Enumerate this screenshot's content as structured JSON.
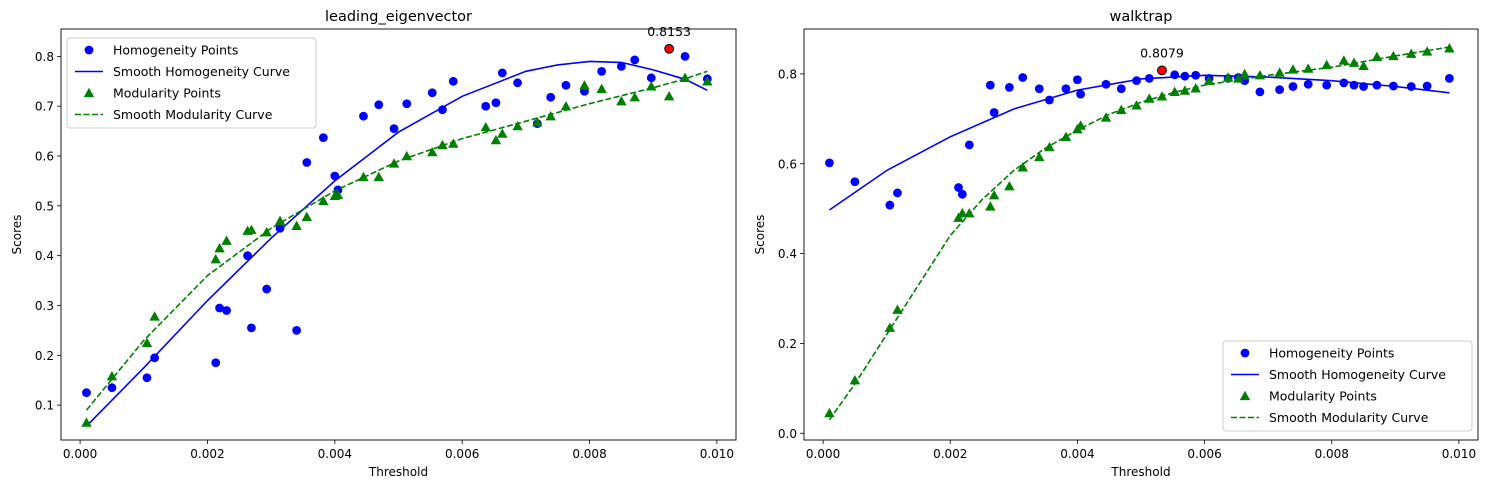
{
  "colors": {
    "homogeneity": "#0000ff",
    "modularity": "#008000",
    "highlight": "#ff0000"
  },
  "chart_data": [
    {
      "type": "scatter",
      "title": "leading_eigenvector",
      "xlabel": "Threshold",
      "ylabel": "Scores",
      "xlim": [
        -0.0003,
        0.0103
      ],
      "ylim": [
        0.03,
        0.855
      ],
      "xticks": [
        0.0,
        0.002,
        0.004,
        0.006,
        0.008,
        0.01
      ],
      "xtick_labels": [
        "0.000",
        "0.002",
        "0.004",
        "0.006",
        "0.008",
        "0.010"
      ],
      "yticks": [
        0.1,
        0.2,
        0.3,
        0.4,
        0.5,
        0.6,
        0.7,
        0.8
      ],
      "ytick_labels": [
        "0.1",
        "0.2",
        "0.3",
        "0.4",
        "0.5",
        "0.6",
        "0.7",
        "0.8"
      ],
      "legend_position": "upper-left",
      "series": [
        {
          "name": "Homogeneity Points",
          "kind": "points",
          "marker": "circle",
          "color": "#0000ff",
          "points": [
            [
              0.0001,
              0.125
            ],
            [
              0.0005,
              0.135
            ],
            [
              0.00105,
              0.155
            ],
            [
              0.00117,
              0.195
            ],
            [
              0.00213,
              0.185
            ],
            [
              0.00219,
              0.295
            ],
            [
              0.0023,
              0.29
            ],
            [
              0.00263,
              0.4
            ],
            [
              0.00269,
              0.255
            ],
            [
              0.00293,
              0.333
            ],
            [
              0.00314,
              0.455
            ],
            [
              0.0034,
              0.25
            ],
            [
              0.00356,
              0.587
            ],
            [
              0.00382,
              0.637
            ],
            [
              0.004,
              0.56
            ],
            [
              0.00405,
              0.532
            ],
            [
              0.00445,
              0.68
            ],
            [
              0.00469,
              0.703
            ],
            [
              0.00493,
              0.655
            ],
            [
              0.00513,
              0.705
            ],
            [
              0.00553,
              0.727
            ],
            [
              0.00569,
              0.693
            ],
            [
              0.00586,
              0.75
            ],
            [
              0.00637,
              0.7
            ],
            [
              0.00653,
              0.707
            ],
            [
              0.00663,
              0.767
            ],
            [
              0.00687,
              0.747
            ],
            [
              0.00718,
              0.665
            ],
            [
              0.00739,
              0.718
            ],
            [
              0.00763,
              0.742
            ],
            [
              0.00792,
              0.73
            ],
            [
              0.00819,
              0.77
            ],
            [
              0.0085,
              0.78
            ],
            [
              0.00871,
              0.793
            ],
            [
              0.00897,
              0.757
            ],
            [
              0.0095,
              0.8
            ],
            [
              0.00985,
              0.755
            ]
          ]
        },
        {
          "name": "Smooth Homogeneity Curve",
          "kind": "line",
          "style": "solid",
          "color": "#0000ff",
          "points": [
            [
              0.0001,
              0.058
            ],
            [
              0.001,
              0.175
            ],
            [
              0.002,
              0.31
            ],
            [
              0.003,
              0.435
            ],
            [
              0.004,
              0.55
            ],
            [
              0.005,
              0.648
            ],
            [
              0.006,
              0.72
            ],
            [
              0.007,
              0.77
            ],
            [
              0.0075,
              0.783
            ],
            [
              0.008,
              0.79
            ],
            [
              0.0085,
              0.788
            ],
            [
              0.009,
              0.773
            ],
            [
              0.0095,
              0.754
            ],
            [
              0.00985,
              0.732
            ]
          ]
        },
        {
          "name": "Modularity Points",
          "kind": "points",
          "marker": "triangle",
          "color": "#008000",
          "points": [
            [
              0.0001,
              0.065
            ],
            [
              0.0005,
              0.158
            ],
            [
              0.00105,
              0.225
            ],
            [
              0.00117,
              0.278
            ],
            [
              0.00213,
              0.393
            ],
            [
              0.00219,
              0.415
            ],
            [
              0.0023,
              0.43
            ],
            [
              0.00263,
              0.45
            ],
            [
              0.00269,
              0.452
            ],
            [
              0.00293,
              0.447
            ],
            [
              0.00314,
              0.47
            ],
            [
              0.0034,
              0.46
            ],
            [
              0.00356,
              0.478
            ],
            [
              0.00382,
              0.51
            ],
            [
              0.004,
              0.52
            ],
            [
              0.00405,
              0.522
            ],
            [
              0.00445,
              0.558
            ],
            [
              0.00469,
              0.558
            ],
            [
              0.00493,
              0.585
            ],
            [
              0.00513,
              0.6
            ],
            [
              0.00553,
              0.608
            ],
            [
              0.00569,
              0.622
            ],
            [
              0.00586,
              0.625
            ],
            [
              0.00637,
              0.658
            ],
            [
              0.00653,
              0.632
            ],
            [
              0.00663,
              0.645
            ],
            [
              0.00687,
              0.66
            ],
            [
              0.00718,
              0.668
            ],
            [
              0.00739,
              0.68
            ],
            [
              0.00763,
              0.7
            ],
            [
              0.00792,
              0.742
            ],
            [
              0.00819,
              0.735
            ],
            [
              0.0085,
              0.71
            ],
            [
              0.00871,
              0.718
            ],
            [
              0.00897,
              0.74
            ],
            [
              0.00925,
              0.72
            ],
            [
              0.0095,
              0.757
            ],
            [
              0.00985,
              0.75
            ]
          ]
        },
        {
          "name": "Smooth Modularity Curve",
          "kind": "line",
          "style": "dashed",
          "color": "#008000",
          "points": [
            [
              0.0001,
              0.09
            ],
            [
              0.001,
              0.23
            ],
            [
              0.002,
              0.36
            ],
            [
              0.003,
              0.455
            ],
            [
              0.004,
              0.53
            ],
            [
              0.005,
              0.59
            ],
            [
              0.006,
              0.635
            ],
            [
              0.007,
              0.67
            ],
            [
              0.008,
              0.705
            ],
            [
              0.009,
              0.737
            ],
            [
              0.0095,
              0.755
            ],
            [
              0.00985,
              0.77
            ]
          ]
        }
      ],
      "highlight": {
        "x": 0.00925,
        "y": 0.8153,
        "label": "0.8153"
      }
    },
    {
      "type": "scatter",
      "title": "walktrap",
      "xlabel": "Threshold",
      "ylabel": "Scores",
      "xlim": [
        -0.0003,
        0.0103
      ],
      "ylim": [
        -0.015,
        0.9
      ],
      "xticks": [
        0.0,
        0.002,
        0.004,
        0.006,
        0.008,
        0.01
      ],
      "xtick_labels": [
        "0.000",
        "0.002",
        "0.004",
        "0.006",
        "0.008",
        "0.010"
      ],
      "yticks": [
        0.0,
        0.2,
        0.4,
        0.6,
        0.8
      ],
      "ytick_labels": [
        "0.0",
        "0.2",
        "0.4",
        "0.6",
        "0.8"
      ],
      "legend_position": "lower-right",
      "series": [
        {
          "name": "Homogeneity Points",
          "kind": "points",
          "marker": "circle",
          "color": "#0000ff",
          "points": [
            [
              0.0001,
              0.602
            ],
            [
              0.0005,
              0.56
            ],
            [
              0.00105,
              0.508
            ],
            [
              0.00117,
              0.535
            ],
            [
              0.00213,
              0.547
            ],
            [
              0.00219,
              0.532
            ],
            [
              0.0023,
              0.642
            ],
            [
              0.00263,
              0.775
            ],
            [
              0.00269,
              0.714
            ],
            [
              0.00293,
              0.77
            ],
            [
              0.00314,
              0.792
            ],
            [
              0.0034,
              0.767
            ],
            [
              0.00356,
              0.742
            ],
            [
              0.00382,
              0.767
            ],
            [
              0.004,
              0.787
            ],
            [
              0.00405,
              0.755
            ],
            [
              0.00445,
              0.777
            ],
            [
              0.00469,
              0.767
            ],
            [
              0.00493,
              0.785
            ],
            [
              0.00513,
              0.79
            ],
            [
              0.00533,
              0.8079
            ],
            [
              0.00553,
              0.798
            ],
            [
              0.00569,
              0.795
            ],
            [
              0.00586,
              0.797
            ],
            [
              0.00607,
              0.79
            ],
            [
              0.00637,
              0.79
            ],
            [
              0.00653,
              0.792
            ],
            [
              0.00663,
              0.785
            ],
            [
              0.00687,
              0.76
            ],
            [
              0.00718,
              0.765
            ],
            [
              0.00739,
              0.772
            ],
            [
              0.00763,
              0.777
            ],
            [
              0.00792,
              0.775
            ],
            [
              0.00819,
              0.78
            ],
            [
              0.00835,
              0.775
            ],
            [
              0.0085,
              0.772
            ],
            [
              0.00871,
              0.775
            ],
            [
              0.00897,
              0.773
            ],
            [
              0.00925,
              0.772
            ],
            [
              0.0095,
              0.773
            ],
            [
              0.00985,
              0.79
            ]
          ]
        },
        {
          "name": "Smooth Homogeneity Curve",
          "kind": "line",
          "style": "solid",
          "color": "#0000ff",
          "points": [
            [
              0.0001,
              0.497
            ],
            [
              0.001,
              0.585
            ],
            [
              0.002,
              0.66
            ],
            [
              0.003,
              0.722
            ],
            [
              0.004,
              0.764
            ],
            [
              0.005,
              0.789
            ],
            [
              0.006,
              0.797
            ],
            [
              0.007,
              0.793
            ],
            [
              0.008,
              0.785
            ],
            [
              0.009,
              0.772
            ],
            [
              0.00985,
              0.758
            ]
          ]
        },
        {
          "name": "Modularity Points",
          "kind": "points",
          "marker": "triangle",
          "color": "#008000",
          "points": [
            [
              0.0001,
              0.045
            ],
            [
              0.0005,
              0.118
            ],
            [
              0.00105,
              0.235
            ],
            [
              0.00117,
              0.275
            ],
            [
              0.00213,
              0.48
            ],
            [
              0.00219,
              0.49
            ],
            [
              0.0023,
              0.49
            ],
            [
              0.00263,
              0.505
            ],
            [
              0.00269,
              0.53
            ],
            [
              0.00293,
              0.55
            ],
            [
              0.00314,
              0.592
            ],
            [
              0.0034,
              0.615
            ],
            [
              0.00356,
              0.637
            ],
            [
              0.00382,
              0.66
            ],
            [
              0.004,
              0.677
            ],
            [
              0.00405,
              0.685
            ],
            [
              0.00445,
              0.703
            ],
            [
              0.00469,
              0.72
            ],
            [
              0.00493,
              0.73
            ],
            [
              0.00513,
              0.745
            ],
            [
              0.00533,
              0.75
            ],
            [
              0.00553,
              0.76
            ],
            [
              0.00569,
              0.763
            ],
            [
              0.00586,
              0.768
            ],
            [
              0.00607,
              0.785
            ],
            [
              0.00637,
              0.792
            ],
            [
              0.00653,
              0.79
            ],
            [
              0.00663,
              0.8
            ],
            [
              0.00687,
              0.797
            ],
            [
              0.00718,
              0.803
            ],
            [
              0.00739,
              0.81
            ],
            [
              0.00763,
              0.812
            ],
            [
              0.00792,
              0.82
            ],
            [
              0.00819,
              0.83
            ],
            [
              0.00835,
              0.825
            ],
            [
              0.0085,
              0.818
            ],
            [
              0.00871,
              0.838
            ],
            [
              0.00897,
              0.84
            ],
            [
              0.00925,
              0.845
            ],
            [
              0.0095,
              0.85
            ],
            [
              0.00985,
              0.857
            ]
          ]
        },
        {
          "name": "Smooth Modularity Curve",
          "kind": "line",
          "style": "dashed",
          "color": "#008000",
          "points": [
            [
              0.0001,
              0.03
            ],
            [
              0.0005,
              0.11
            ],
            [
              0.001,
              0.22
            ],
            [
              0.0015,
              0.33
            ],
            [
              0.002,
              0.44
            ],
            [
              0.0025,
              0.52
            ],
            [
              0.003,
              0.585
            ],
            [
              0.0035,
              0.635
            ],
            [
              0.004,
              0.675
            ],
            [
              0.0045,
              0.71
            ],
            [
              0.005,
              0.737
            ],
            [
              0.0055,
              0.758
            ],
            [
              0.006,
              0.775
            ],
            [
              0.007,
              0.797
            ],
            [
              0.008,
              0.815
            ],
            [
              0.009,
              0.84
            ],
            [
              0.00985,
              0.86
            ]
          ]
        }
      ],
      "highlight": {
        "x": 0.00533,
        "y": 0.8079,
        "label": "0.8079"
      }
    }
  ]
}
